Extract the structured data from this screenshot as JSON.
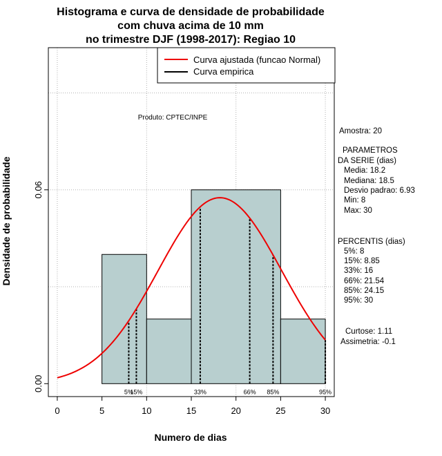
{
  "chart_data": {
    "type": "bar",
    "title_lines": [
      "Histograma e curva de densidade de probabilidade",
      "com chuva acima de 10 mm",
      "no trimestre DJF (1998-2017): Regiao 10"
    ],
    "xlabel": "Numero de dias",
    "ylabel": "Densidade de probabilidade",
    "xlim": [
      -1,
      31
    ],
    "ylim": [
      -0.004,
      0.104
    ],
    "x_ticks": [
      0,
      5,
      10,
      15,
      20,
      25,
      30
    ],
    "y_ticks": [
      0.0,
      0.06
    ],
    "y_tick_labels": [
      "0.00",
      "0.06"
    ],
    "grid_x": [
      0,
      10,
      20,
      30
    ],
    "grid_y": [
      0.03,
      0.06,
      0.09
    ],
    "bins": [
      {
        "start": 5,
        "end": 10,
        "density": 0.04
      },
      {
        "start": 10,
        "end": 15,
        "density": 0.02
      },
      {
        "start": 15,
        "end": 25,
        "density": 0.06
      },
      {
        "start": 25,
        "end": 30,
        "density": 0.02
      }
    ],
    "fit_curve": {
      "type": "normal",
      "mean": 18.2,
      "sd": 6.93,
      "x_range": [
        0,
        30
      ]
    },
    "percentile_lines": [
      {
        "label": "5%",
        "x": 8
      },
      {
        "label": "15%",
        "x": 8.85
      },
      {
        "label": "33%",
        "x": 16
      },
      {
        "label": "66%",
        "x": 21.54
      },
      {
        "label": "85%",
        "x": 24.15
      },
      {
        "label": "95%",
        "x": 30
      }
    ],
    "legend": {
      "position": "top-right",
      "entries": [
        {
          "label": "Curva ajustada (funcao Normal)",
          "color": "#ee0000"
        },
        {
          "label": "Curva empirica",
          "color": "#000000"
        }
      ]
    },
    "product_note": "Produto: CPTEC/INPE",
    "colors": {
      "bar_fill": "#b8cfcf",
      "bar_stroke": "#000000",
      "curve": "#ee0000",
      "grid": "#b0b0b0"
    }
  },
  "side_panel": {
    "amostra": "Amostra: 20",
    "params_title_1": "PARAMETROS",
    "params_title_2": "DA SERIE (dias)",
    "media": "Media: 18.2",
    "mediana": "Mediana: 18.5",
    "desvio": "Desvio padrao: 6.93",
    "min": "Min: 8",
    "max": "Max: 30",
    "pct_title": "PERCENTIS (dias)",
    "p5": "5%: 8",
    "p15": "15%: 8.85",
    "p33": "33%: 16",
    "p66": "66%: 21.54",
    "p85": "85%: 24.15",
    "p95": "95%: 30",
    "curtose": "Curtose: 1.11",
    "assimetria": "Assimetria: -0.1"
  }
}
